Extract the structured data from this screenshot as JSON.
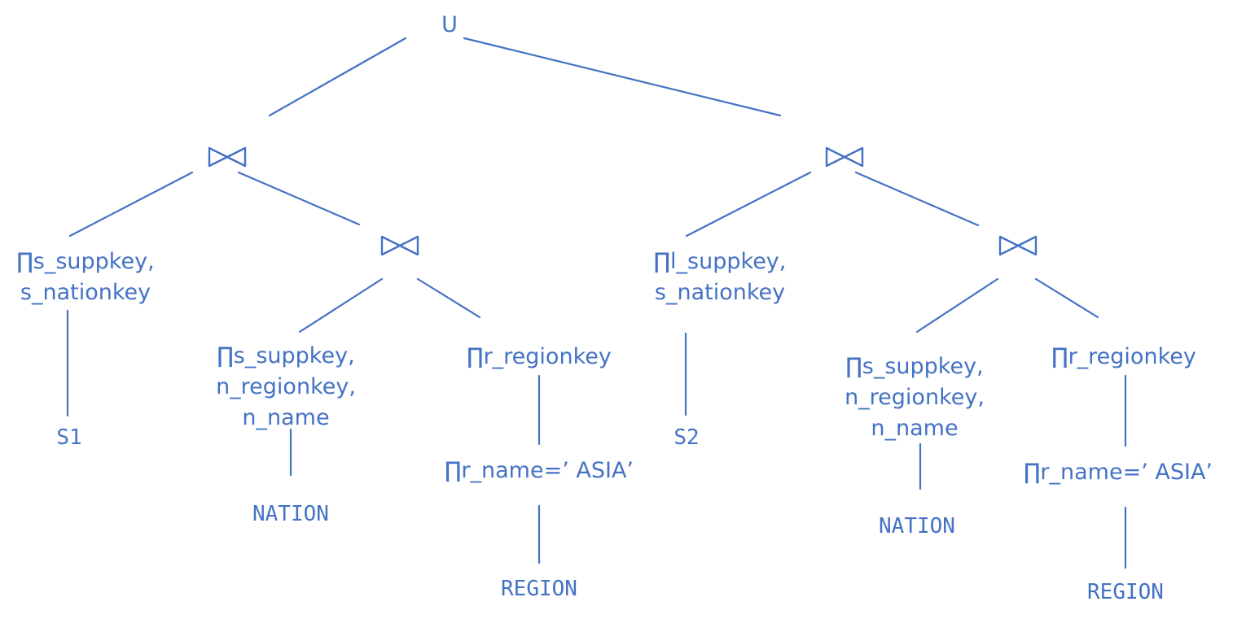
{
  "tree": {
    "root": {
      "label": "U"
    },
    "left": {
      "project_s": "∏s_suppkey,\ns_nationkey",
      "table_s": "S1",
      "project_n": "∏s_suppkey,\nn_regionkey,\nn_name",
      "table_n": "NATION",
      "project_r": "∏r_regionkey",
      "select_r": "∏r_name=’ ASIA’",
      "table_r": "REGION"
    },
    "right": {
      "project_s": "∏l_suppkey,\ns_nationkey",
      "table_s": "S2",
      "project_n": "∏s_suppkey,\nn_regionkey,\nn_name",
      "table_n": "NATION",
      "project_r": "∏r_regionkey",
      "select_r": "∏r_name=’ ASIA’",
      "table_r": "REGION"
    },
    "join_icon": "bowtie-join-icon",
    "color": "#4472c4"
  }
}
